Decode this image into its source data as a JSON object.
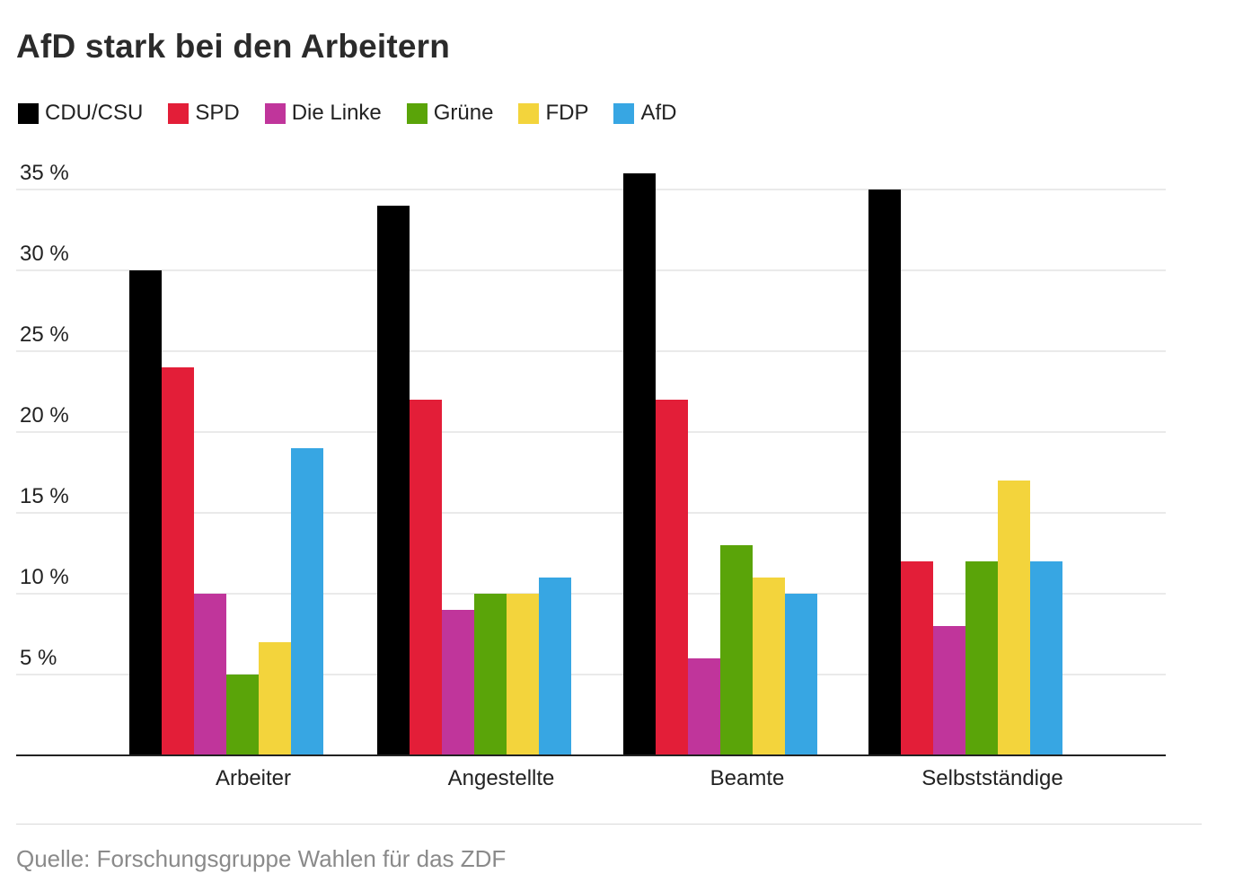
{
  "chart_data": {
    "type": "bar",
    "title": "AfD stark bei den Arbeitern",
    "categories": [
      "Arbeiter",
      "Angestellte",
      "Beamte",
      "Selbstständige"
    ],
    "series": [
      {
        "name": "CDU/CSU",
        "color": "#000000",
        "values": [
          30,
          34,
          36,
          35
        ]
      },
      {
        "name": "SPD",
        "color": "#e31e38",
        "values": [
          24,
          22,
          22,
          12
        ]
      },
      {
        "name": "Die Linke",
        "color": "#c0359b",
        "values": [
          10,
          9,
          6,
          8
        ]
      },
      {
        "name": "Grüne",
        "color": "#5aa409",
        "values": [
          5,
          10,
          13,
          12
        ]
      },
      {
        "name": "FDP",
        "color": "#f3d43c",
        "values": [
          7,
          10,
          11,
          17
        ]
      },
      {
        "name": "AfD",
        "color": "#37a6e3",
        "values": [
          19,
          11,
          10,
          12
        ]
      }
    ],
    "yticks": [
      5,
      10,
      15,
      20,
      25,
      30,
      35
    ],
    "ytick_labels": [
      "5 %",
      "10 %",
      "15 %",
      "20 %",
      "25 %",
      "30 %",
      "35 %"
    ],
    "ylim": [
      0,
      36
    ],
    "xlabel": "",
    "ylabel": "",
    "grid": true,
    "legend_position": "top-left",
    "source": "Quelle: Forschungsgruppe Wahlen für das ZDF"
  }
}
